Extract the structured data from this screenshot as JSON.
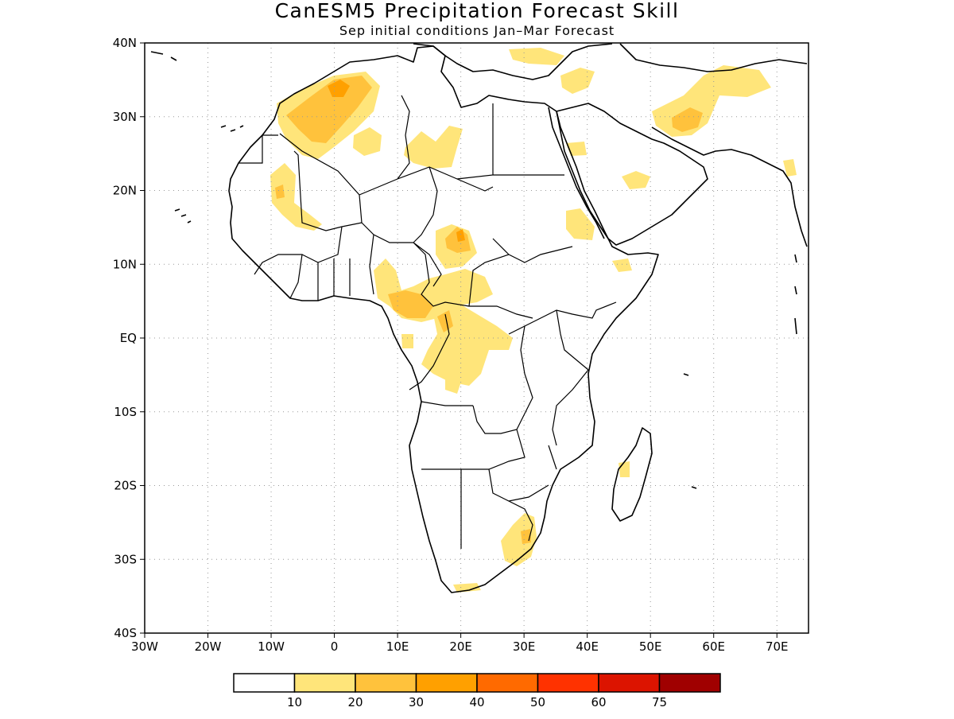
{
  "title": "CanESM5 Precipitation Forecast Skill",
  "subtitle": "Sep initial conditions  Jan–Mar Forecast",
  "lat_labels": [
    "40N",
    "30N",
    "20N",
    "10N",
    "EQ",
    "10S",
    "20S",
    "30S",
    "40S"
  ],
  "lon_labels": [
    "30W",
    "20W",
    "10W",
    "0",
    "10E",
    "20E",
    "30E",
    "40E",
    "50E",
    "60E",
    "70E"
  ],
  "legend": {
    "colors": [
      "#ffffff",
      "#ffe57a",
      "#ffc23c",
      "#ffa000",
      "#ff6a00",
      "#ff3200",
      "#dc1400",
      "#a00000"
    ],
    "labels": [
      "10",
      "20",
      "30",
      "40",
      "50",
      "60",
      "75"
    ]
  },
  "shading_colors": {
    "c10": "#ffe57a",
    "c20": "#ffc23c",
    "c30": "#ffa000"
  }
}
